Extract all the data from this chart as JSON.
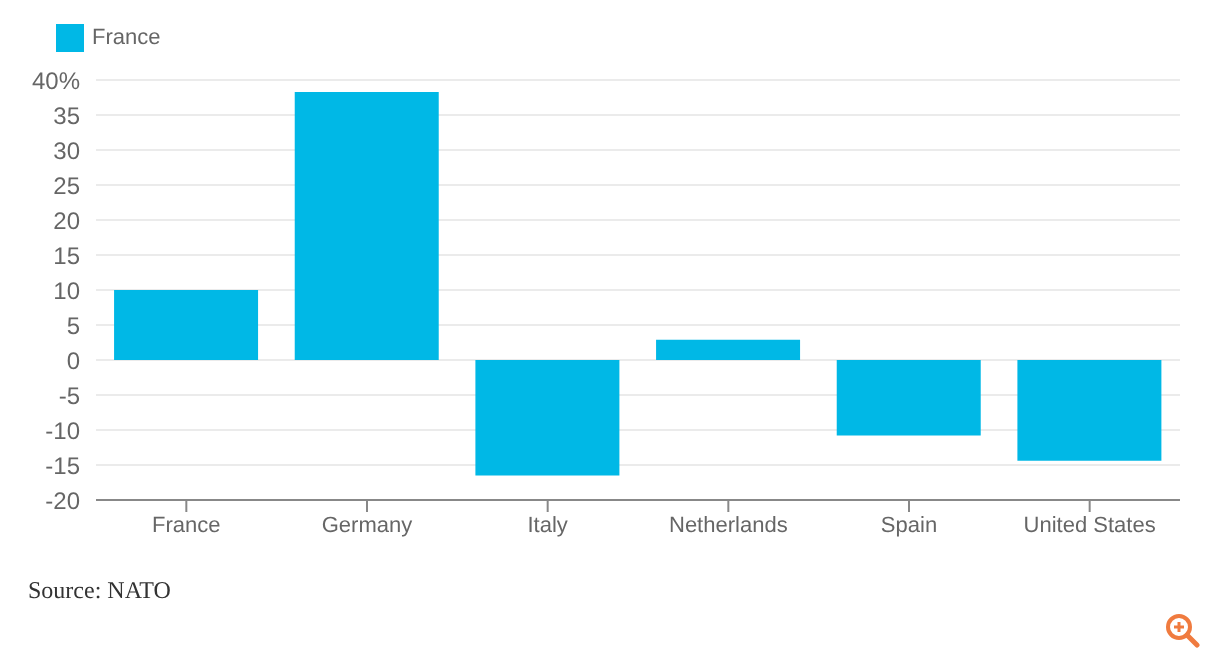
{
  "chart_data": {
    "type": "bar",
    "categories": [
      "France",
      "Germany",
      "Italy",
      "Netherlands",
      "Spain",
      "United States"
    ],
    "series": [
      {
        "name": "France",
        "color": "#00b8e6",
        "values": [
          10,
          38.3,
          -16.5,
          2.9,
          -10.8,
          -14.4
        ]
      }
    ],
    "ylim": [
      -20,
      40
    ],
    "yticks": [
      -20,
      -15,
      -10,
      -5,
      0,
      5,
      10,
      15,
      20,
      25,
      30,
      35,
      {
        "value": 40,
        "label": "40%"
      }
    ],
    "grid": "y",
    "legend": "top left",
    "annotations": [
      "Source: NATO"
    ]
  }
}
